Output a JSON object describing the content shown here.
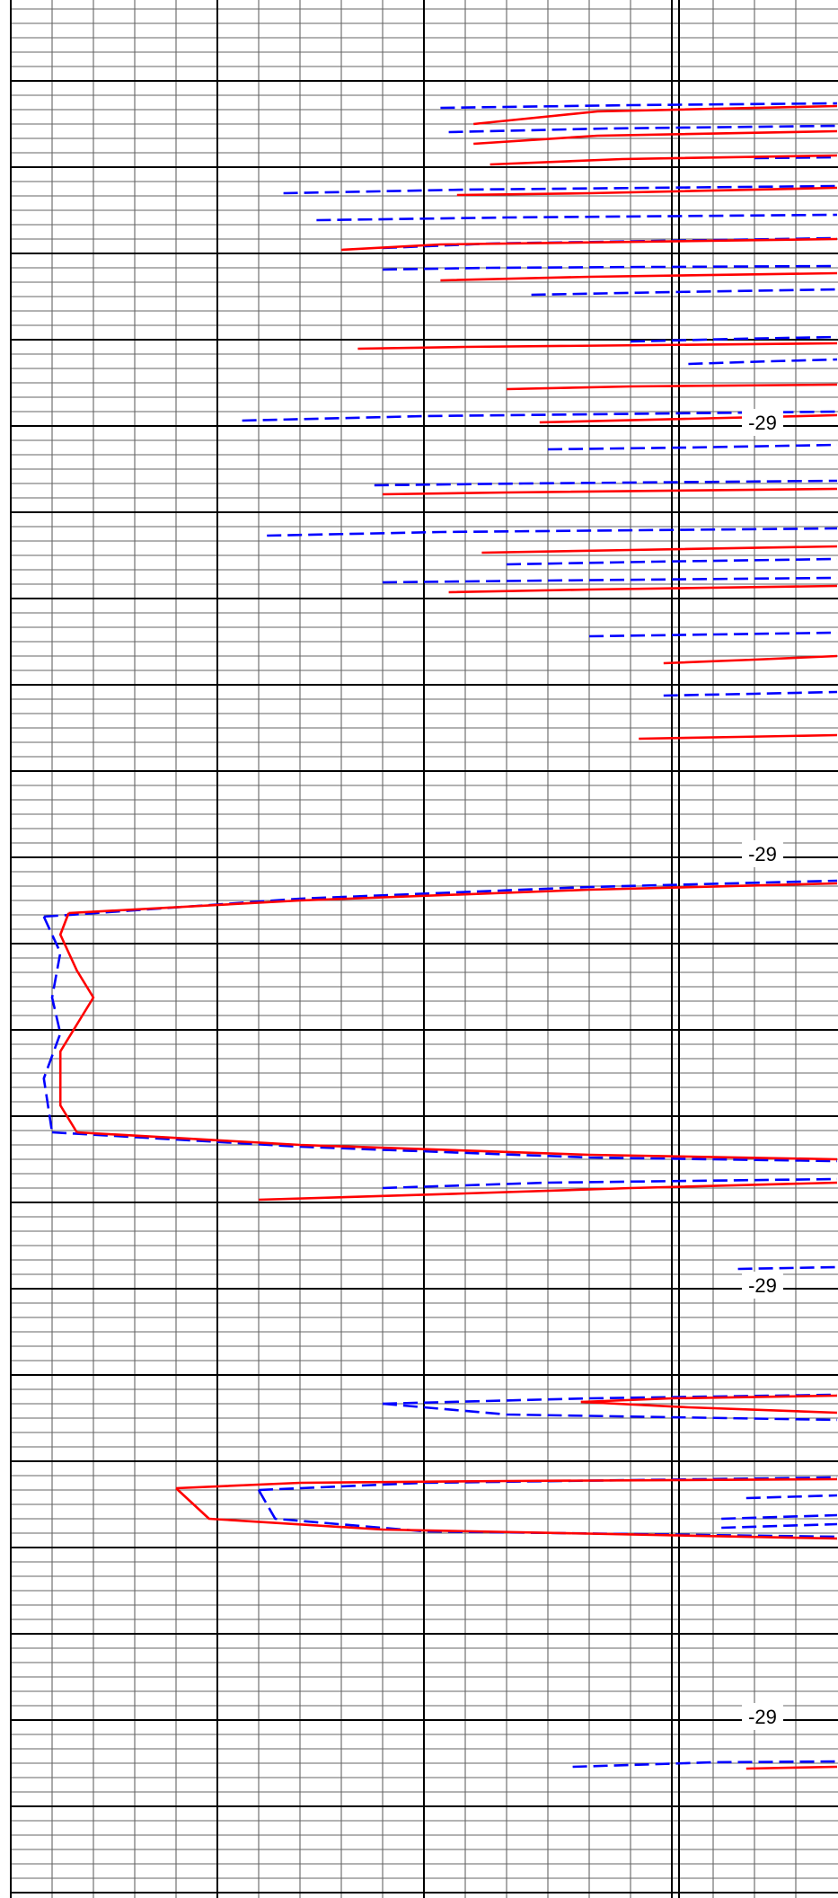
{
  "chart_data": {
    "type": "line",
    "title": "",
    "xlabel": "",
    "ylabel": "",
    "grid": true,
    "tick_labels": [
      "-29",
      "-29",
      "-29",
      "-29"
    ],
    "series": [
      {
        "style": "solid",
        "color": "#ff0000",
        "segments": [
          [
            [
              0.56,
              138
            ],
            [
              0.71,
              124
            ],
            [
              1.0,
              118
            ]
          ],
          [
            [
              0.56,
              160
            ],
            [
              0.71,
              151
            ],
            [
              1.0,
              146
            ]
          ],
          [
            [
              0.58,
              183
            ],
            [
              0.74,
              177
            ],
            [
              1.0,
              173
            ]
          ],
          [
            [
              0.54,
              217
            ],
            [
              0.7,
              215
            ],
            [
              1.0,
              209
            ]
          ],
          [
            [
              0.4,
              278
            ],
            [
              0.52,
              272
            ],
            [
              1.0,
              266
            ]
          ],
          [
            [
              0.52,
              312
            ],
            [
              0.7,
              308
            ],
            [
              1.0,
              304
            ]
          ],
          [
            [
              0.42,
              388
            ],
            [
              0.55,
              386
            ],
            [
              1.0,
              382
            ]
          ],
          [
            [
              0.6,
              433
            ],
            [
              0.75,
              430
            ],
            [
              1.0,
              428
            ]
          ],
          [
            [
              0.64,
              470
            ],
            [
              0.82,
              466
            ],
            [
              1.0,
              462
            ]
          ],
          [
            [
              0.45,
              550
            ],
            [
              0.6,
              548
            ],
            [
              1.0,
              544
            ]
          ],
          [
            [
              0.57,
              615
            ],
            [
              0.75,
              612
            ],
            [
              1.0,
              608
            ]
          ],
          [
            [
              0.53,
              659
            ],
            [
              0.7,
              656
            ],
            [
              1.0,
              652
            ]
          ],
          [
            [
              0.79,
              738
            ],
            [
              0.9,
              734
            ],
            [
              1.0,
              730
            ]
          ],
          [
            [
              0.76,
              822
            ],
            [
              0.88,
              820
            ],
            [
              1.0,
              818
            ]
          ],
          [
            [
              0.07,
              1016
            ],
            [
              0.35,
              1002
            ],
            [
              0.7,
              990
            ],
            [
              1.0,
              983
            ]
          ],
          [
            [
              0.07,
              1016
            ],
            [
              0.06,
              1040
            ],
            [
              0.08,
              1080
            ],
            [
              0.1,
              1110
            ],
            [
              0.08,
              1140
            ],
            [
              0.06,
              1170
            ],
            [
              0.06,
              1230
            ],
            [
              0.08,
              1260
            ]
          ],
          [
            [
              0.08,
              1260
            ],
            [
              0.35,
              1274
            ],
            [
              0.7,
              1285
            ],
            [
              1.0,
              1290
            ]
          ],
          [
            [
              0.3,
              1335
            ],
            [
              0.55,
              1328
            ],
            [
              0.75,
              1322
            ],
            [
              1.0,
              1316
            ]
          ],
          [
            [
              0.69,
              1560
            ],
            [
              0.8,
              1556
            ],
            [
              1.0,
              1553
            ]
          ],
          [
            [
              0.69,
              1560
            ],
            [
              0.82,
              1566
            ],
            [
              1.0,
              1572
            ]
          ],
          [
            [
              0.2,
              1656
            ],
            [
              0.35,
              1650
            ],
            [
              0.6,
              1648
            ],
            [
              1.0,
              1646
            ]
          ],
          [
            [
              0.2,
              1656
            ],
            [
              0.24,
              1690
            ],
            [
              0.45,
              1702
            ],
            [
              1.0,
              1712
            ]
          ],
          [
            [
              0.89,
              1968
            ],
            [
              1.0,
              1966
            ]
          ]
        ]
      },
      {
        "style": "dashed",
        "color": "#0000ff",
        "segments": [
          [
            [
              0.52,
              120
            ],
            [
              0.75,
              117
            ],
            [
              1.0,
              115
            ]
          ],
          [
            [
              0.53,
              147
            ],
            [
              0.72,
              143
            ],
            [
              1.0,
              140
            ]
          ],
          [
            [
              0.9,
              176
            ],
            [
              1.0,
              175
            ]
          ],
          [
            [
              0.33,
              215
            ],
            [
              0.55,
              211
            ],
            [
              1.0,
              207
            ]
          ],
          [
            [
              0.37,
              245
            ],
            [
              0.6,
              242
            ],
            [
              1.0,
              239
            ]
          ],
          [
            [
              0.45,
              276
            ],
            [
              0.58,
              271
            ],
            [
              1.0,
              265
            ]
          ],
          [
            [
              0.45,
              300
            ],
            [
              0.58,
              298
            ],
            [
              1.0,
              296
            ]
          ],
          [
            [
              0.63,
              328
            ],
            [
              0.8,
              325
            ],
            [
              1.0,
              322
            ]
          ],
          [
            [
              0.75,
              380
            ],
            [
              0.88,
              377
            ],
            [
              1.0,
              375
            ]
          ],
          [
            [
              0.82,
              405
            ],
            [
              0.92,
              402
            ],
            [
              1.0,
              400
            ]
          ],
          [
            [
              0.28,
              468
            ],
            [
              0.5,
              463
            ],
            [
              1.0,
              458
            ]
          ],
          [
            [
              0.65,
              500
            ],
            [
              0.82,
              498
            ],
            [
              1.0,
              495
            ]
          ],
          [
            [
              0.44,
              540
            ],
            [
              0.62,
              538
            ],
            [
              1.0,
              535
            ]
          ],
          [
            [
              0.31,
              596
            ],
            [
              0.52,
              592
            ],
            [
              1.0,
              588
            ]
          ],
          [
            [
              0.6,
              628
            ],
            [
              0.78,
              625
            ],
            [
              1.0,
              622
            ]
          ],
          [
            [
              0.45,
              648
            ],
            [
              0.65,
              646
            ],
            [
              1.0,
              643
            ]
          ],
          [
            [
              0.7,
              708
            ],
            [
              0.85,
              706
            ],
            [
              1.0,
              704
            ]
          ],
          [
            [
              0.79,
              774
            ],
            [
              0.9,
              772
            ],
            [
              1.0,
              770
            ]
          ],
          [
            [
              0.04,
              1020
            ],
            [
              0.35,
              1000
            ],
            [
              0.7,
              987
            ],
            [
              1.0,
              980
            ]
          ],
          [
            [
              0.04,
              1020
            ],
            [
              0.06,
              1060
            ],
            [
              0.05,
              1110
            ],
            [
              0.06,
              1150
            ],
            [
              0.04,
              1200
            ],
            [
              0.05,
              1260
            ]
          ],
          [
            [
              0.05,
              1260
            ],
            [
              0.35,
              1276
            ],
            [
              0.7,
              1288
            ],
            [
              1.0,
              1292
            ]
          ],
          [
            [
              0.45,
              1322
            ],
            [
              0.65,
              1316
            ],
            [
              1.0,
              1312
            ]
          ],
          [
            [
              0.88,
              1412
            ],
            [
              1.0,
              1410
            ]
          ],
          [
            [
              0.45,
              1562
            ],
            [
              0.7,
              1556
            ],
            [
              1.0,
              1552
            ]
          ],
          [
            [
              0.45,
              1562
            ],
            [
              0.6,
              1574
            ],
            [
              1.0,
              1580
            ]
          ],
          [
            [
              0.89,
              1667
            ],
            [
              1.0,
              1664
            ]
          ],
          [
            [
              0.86,
              1690
            ],
            [
              1.0,
              1686
            ]
          ],
          [
            [
              0.86,
              1700
            ],
            [
              1.0,
              1696
            ]
          ],
          [
            [
              0.3,
              1658
            ],
            [
              0.5,
              1650
            ],
            [
              1.0,
              1644
            ]
          ],
          [
            [
              0.3,
              1658
            ],
            [
              0.32,
              1690
            ],
            [
              0.5,
              1704
            ],
            [
              1.0,
              1710
            ]
          ],
          [
            [
              0.68,
              1966
            ],
            [
              0.85,
              1961
            ],
            [
              1.0,
              1960
            ]
          ]
        ]
      }
    ]
  }
}
